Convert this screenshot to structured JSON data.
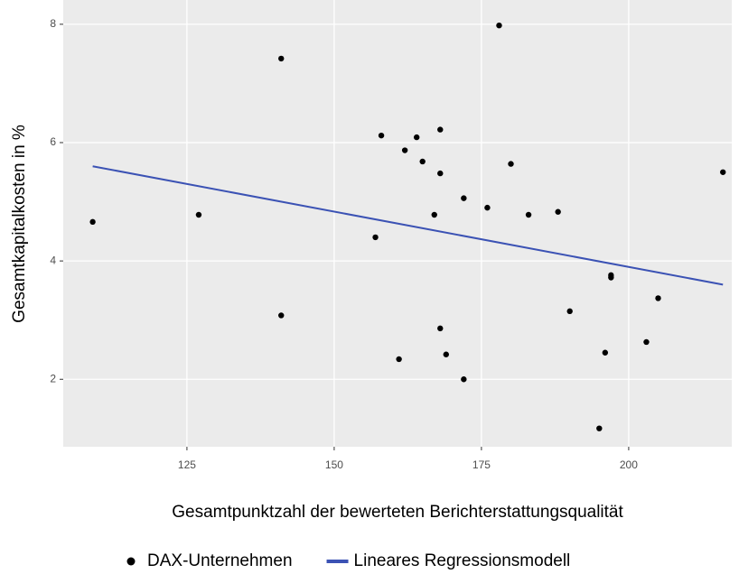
{
  "chart_data": {
    "type": "scatter",
    "xlabel": "Gesamtpunktzahl der bewerteten Berichterstattungsqualität",
    "ylabel": "Gesamtkapitalkosten in %",
    "xlim": [
      104,
      217.5
    ],
    "ylim": [
      0.86,
      8.41
    ],
    "xticks": [
      125,
      150,
      175,
      200
    ],
    "yticks": [
      2,
      4,
      6,
      8
    ],
    "grid": true,
    "legend": "bottom",
    "series": [
      {
        "name": "DAX-Unternehmen",
        "kind": "points",
        "color": "#000000",
        "x": [
          109,
          127,
          141,
          141,
          157,
          158,
          161,
          162,
          164,
          165,
          167,
          168,
          168,
          168,
          169,
          172,
          172,
          176,
          178,
          180,
          183,
          188,
          190,
          195,
          196,
          197,
          197,
          203,
          205,
          216
        ],
        "values": [
          4.66,
          4.78,
          7.42,
          3.08,
          4.4,
          6.12,
          2.34,
          5.87,
          6.09,
          5.68,
          4.78,
          6.22,
          5.48,
          2.86,
          2.42,
          5.06,
          2.0,
          4.9,
          7.98,
          5.64,
          4.78,
          4.83,
          3.15,
          1.17,
          2.45,
          3.76,
          3.72,
          2.63,
          3.37,
          5.5
        ]
      },
      {
        "name": "Lineares Regressionsmodell",
        "kind": "line",
        "color": "#3b52b4",
        "x": [
          109,
          216
        ],
        "values": [
          5.6,
          3.6
        ]
      }
    ]
  }
}
